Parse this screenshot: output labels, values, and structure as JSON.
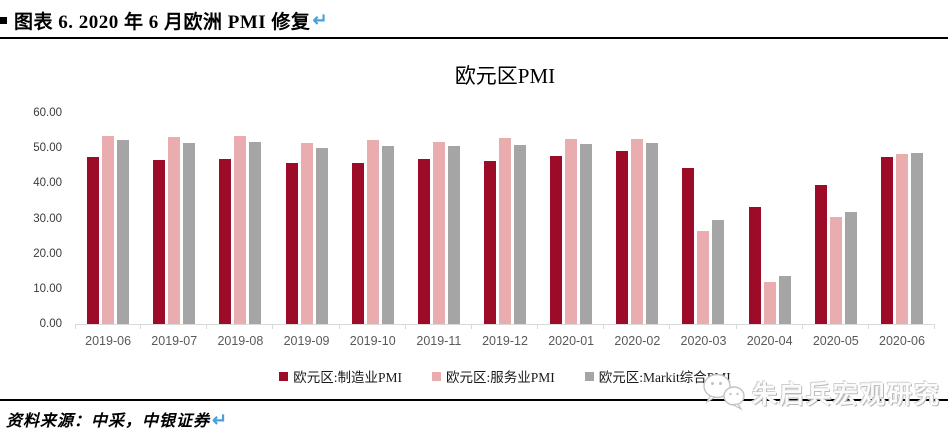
{
  "header": {
    "title": "图表 6. 2020 年 6 月欧洲 PMI 修复",
    "return_mark": "↵"
  },
  "chart_data": {
    "type": "bar",
    "title": "欧元区PMI",
    "categories": [
      "2019-06",
      "2019-07",
      "2019-08",
      "2019-09",
      "2019-10",
      "2019-11",
      "2019-12",
      "2020-01",
      "2020-02",
      "2020-03",
      "2020-04",
      "2020-05",
      "2020-06"
    ],
    "series": [
      {
        "name": "欧元区:制造业PMI",
        "color": "#9C0B28",
        "values": [
          47.6,
          46.5,
          47.0,
          45.7,
          45.9,
          46.9,
          46.3,
          47.9,
          49.2,
          44.5,
          33.4,
          39.4,
          47.4
        ]
      },
      {
        "name": "欧元区:服务业PMI",
        "color": "#E9ADB0",
        "values": [
          53.6,
          53.2,
          53.5,
          51.6,
          52.2,
          51.9,
          52.8,
          52.5,
          52.6,
          26.4,
          12.0,
          30.5,
          48.3
        ]
      },
      {
        "name": "欧元区:Markit综合PMI",
        "color": "#A5A5A5",
        "values": [
          52.2,
          51.5,
          51.9,
          50.1,
          50.6,
          50.6,
          50.9,
          51.3,
          51.6,
          29.7,
          13.6,
          31.9,
          48.5
        ]
      }
    ],
    "ylim": [
      0,
      60
    ],
    "ytick_step": 10,
    "ytick_labels": [
      "0.00",
      "10.00",
      "20.00",
      "30.00",
      "40.00",
      "50.00",
      "60.00"
    ],
    "grid": false,
    "legend_position": "bottom"
  },
  "footer": {
    "source_text": "资料来源：中采，中银证券",
    "return_mark": "↵"
  },
  "watermark": {
    "text": "朱启兵宏观研究",
    "icon": "wechat-icon"
  }
}
